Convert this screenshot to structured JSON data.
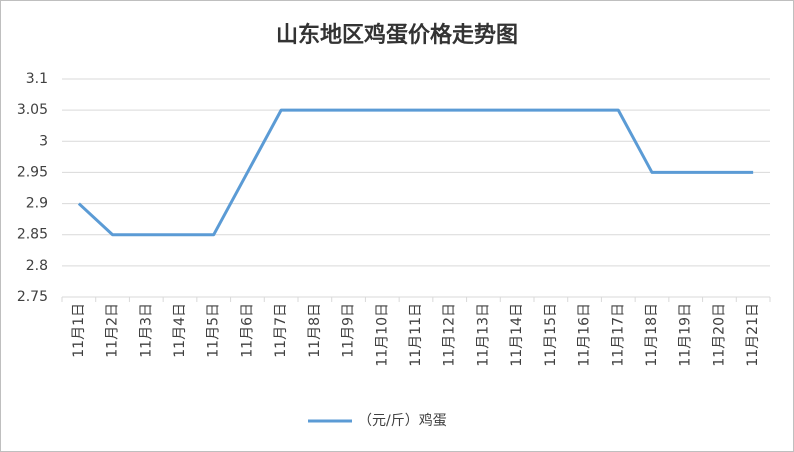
{
  "chart_data": {
    "type": "line",
    "title": "山东地区鸡蛋价格走势图",
    "categories": [
      "11月1日",
      "11月2日",
      "11月3日",
      "11月4日",
      "11月5日",
      "11月6日",
      "11月7日",
      "11月8日",
      "11月9日",
      "11月10日",
      "11月11日",
      "11月12日",
      "11月13日",
      "11月14日",
      "11月15日",
      "11月16日",
      "11月17日",
      "11月18日",
      "11月19日",
      "11月20日",
      "11月21日"
    ],
    "series": [
      {
        "name": "（元/斤）鸡蛋",
        "color": "#5b9bd5",
        "values": [
          2.9,
          2.85,
          2.85,
          2.85,
          2.85,
          2.95,
          3.05,
          3.05,
          3.05,
          3.05,
          3.05,
          3.05,
          3.05,
          3.05,
          3.05,
          3.05,
          3.05,
          2.95,
          2.95,
          2.95,
          2.95
        ]
      }
    ],
    "ylim": [
      2.75,
      3.1
    ],
    "yticks": [
      2.75,
      2.8,
      2.85,
      2.9,
      2.95,
      3,
      3.05,
      3.1
    ],
    "grid": true,
    "legend": "bottom"
  }
}
